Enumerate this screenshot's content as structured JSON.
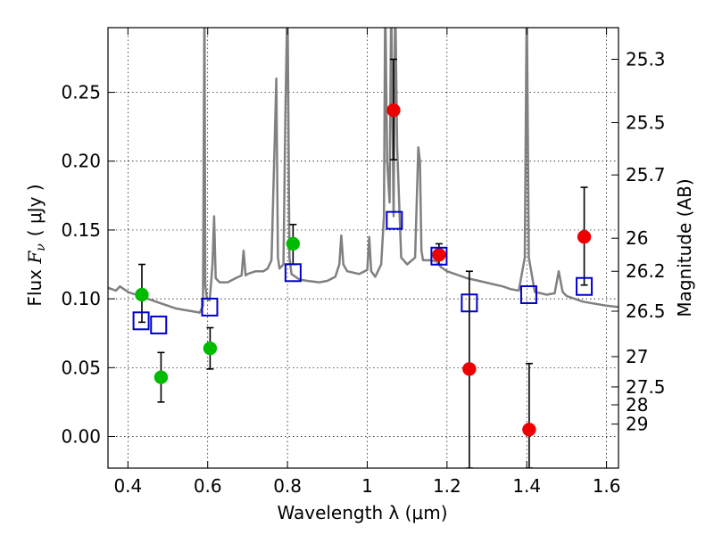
{
  "chart_data": {
    "type": "scatter",
    "xlabel": "Wavelength  λ (μm)",
    "ylabel": "Flux  F_ν  ( μJy )",
    "ylabel_parts": {
      "prefix": "Flux ",
      "symbol": "F",
      "subscript": "ν",
      "unit": "( μJy )"
    },
    "y2label": "Magnitude (AB)",
    "xlim": [
      0.35,
      1.63
    ],
    "ylim": [
      -0.023,
      0.297
    ],
    "grid": true,
    "x_ticks": [
      0.4,
      0.6,
      0.8,
      1.0,
      1.2,
      1.4,
      1.6
    ],
    "x_tick_labels": [
      "0.4",
      "0.6",
      "0.8",
      "1",
      "1.2",
      "1.4",
      "1.6"
    ],
    "y_ticks": [
      0.0,
      0.05,
      0.1,
      0.15,
      0.2,
      0.25
    ],
    "y_tick_labels": [
      "0.00",
      "0.05",
      "0.10",
      "0.15",
      "0.20",
      "0.25"
    ],
    "y2_ticks": [
      {
        "label": "25.3",
        "flux": 0.274
      },
      {
        "label": "25.5",
        "flux": 0.228
      },
      {
        "label": "25.7",
        "flux": 0.19
      },
      {
        "label": "26",
        "flux": 0.144
      },
      {
        "label": "26.2",
        "flux": 0.12
      },
      {
        "label": "26.5",
        "flux": 0.091
      },
      {
        "label": "27",
        "flux": 0.058
      },
      {
        "label": "27.5",
        "flux": 0.036
      },
      {
        "label": "28",
        "flux": 0.023
      },
      {
        "label": "29",
        "flux": 0.009
      }
    ],
    "series": [
      {
        "name": "model spectrum",
        "kind": "line",
        "color": "#808080",
        "x": [
          0.35,
          0.37,
          0.38,
          0.4,
          0.42,
          0.44,
          0.46,
          0.48,
          0.5,
          0.52,
          0.54,
          0.56,
          0.58,
          0.588,
          0.592,
          0.594,
          0.598,
          0.605,
          0.612,
          0.616,
          0.62,
          0.63,
          0.65,
          0.67,
          0.685,
          0.69,
          0.695,
          0.7,
          0.72,
          0.74,
          0.75,
          0.76,
          0.768,
          0.772,
          0.776,
          0.78,
          0.79,
          0.795,
          0.8,
          0.805,
          0.81,
          0.83,
          0.85,
          0.88,
          0.9,
          0.92,
          0.93,
          0.935,
          0.94,
          0.95,
          0.98,
          1.0,
          1.005,
          1.01,
          1.02,
          1.035,
          1.042,
          1.045,
          1.05,
          1.056,
          1.06,
          1.066,
          1.07,
          1.075,
          1.085,
          1.1,
          1.12,
          1.128,
          1.132,
          1.136,
          1.14,
          1.16,
          1.175,
          1.185,
          1.2,
          1.22,
          1.25,
          1.28,
          1.31,
          1.34,
          1.36,
          1.38,
          1.395,
          1.4,
          1.405,
          1.42,
          1.45,
          1.47,
          1.48,
          1.49,
          1.5,
          1.52,
          1.54,
          1.56,
          1.58,
          1.6,
          1.63
        ],
        "y": [
          0.108,
          0.106,
          0.109,
          0.105,
          0.103,
          0.101,
          0.099,
          0.097,
          0.095,
          0.093,
          0.092,
          0.091,
          0.09,
          0.095,
          0.32,
          0.11,
          0.1,
          0.099,
          0.125,
          0.16,
          0.115,
          0.112,
          0.112,
          0.115,
          0.117,
          0.135,
          0.117,
          0.118,
          0.12,
          0.12,
          0.122,
          0.128,
          0.215,
          0.26,
          0.13,
          0.122,
          0.125,
          0.24,
          0.32,
          0.13,
          0.118,
          0.114,
          0.113,
          0.112,
          0.113,
          0.116,
          0.125,
          0.146,
          0.125,
          0.12,
          0.118,
          0.121,
          0.145,
          0.12,
          0.116,
          0.125,
          0.16,
          0.32,
          0.2,
          0.17,
          0.32,
          0.16,
          0.32,
          0.21,
          0.13,
          0.125,
          0.13,
          0.21,
          0.2,
          0.135,
          0.128,
          0.128,
          0.127,
          0.123,
          0.12,
          0.118,
          0.115,
          0.113,
          0.111,
          0.109,
          0.107,
          0.106,
          0.13,
          0.32,
          0.13,
          0.105,
          0.103,
          0.104,
          0.12,
          0.105,
          0.102,
          0.1,
          0.098,
          0.097,
          0.096,
          0.095,
          0.094
        ]
      },
      {
        "name": "green points",
        "kind": "points",
        "color": "#00bb00",
        "points": [
          {
            "x": 0.435,
            "y": 0.103,
            "err_low": 0.083,
            "err_high": 0.125
          },
          {
            "x": 0.483,
            "y": 0.043,
            "err_low": 0.025,
            "err_high": 0.061
          },
          {
            "x": 0.606,
            "y": 0.064,
            "err_low": 0.049,
            "err_high": 0.079
          },
          {
            "x": 0.814,
            "y": 0.14,
            "err_low": 0.125,
            "err_high": 0.154
          }
        ]
      },
      {
        "name": "red points",
        "kind": "points",
        "color": "#ee0000",
        "points": [
          {
            "x": 1.066,
            "y": 0.237,
            "err_low": 0.201,
            "err_high": 0.274
          },
          {
            "x": 1.18,
            "y": 0.132,
            "err_low": 0.125,
            "err_high": 0.14
          },
          {
            "x": 1.256,
            "y": 0.049,
            "err_low": -0.023,
            "err_high": 0.12
          },
          {
            "x": 1.406,
            "y": 0.005,
            "err_low": -0.023,
            "err_high": 0.053
          },
          {
            "x": 1.544,
            "y": 0.145,
            "err_low": 0.11,
            "err_high": 0.181
          }
        ]
      },
      {
        "name": "blue squares",
        "kind": "markers",
        "color": "#0000cc",
        "points": [
          {
            "x": 0.433,
            "y": 0.084
          },
          {
            "x": 0.477,
            "y": 0.081
          },
          {
            "x": 0.605,
            "y": 0.094
          },
          {
            "x": 0.814,
            "y": 0.119
          },
          {
            "x": 1.068,
            "y": 0.157
          },
          {
            "x": 1.18,
            "y": 0.131
          },
          {
            "x": 1.256,
            "y": 0.097
          },
          {
            "x": 1.405,
            "y": 0.103
          },
          {
            "x": 1.544,
            "y": 0.109
          }
        ]
      }
    ]
  }
}
